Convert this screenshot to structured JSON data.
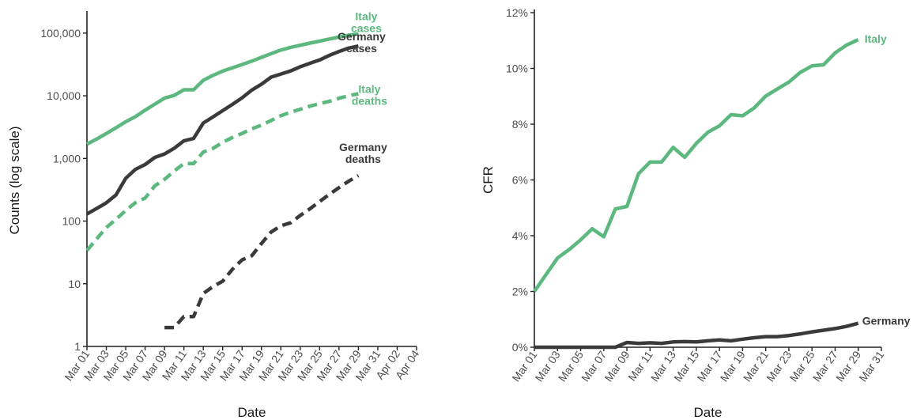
{
  "colors": {
    "italy": "#5cb87e",
    "germany": "#3a3a3a",
    "axis": "#222222",
    "tick_text": "#4d4d4d"
  },
  "chart_data": [
    {
      "type": "line",
      "xlabel": "Date",
      "ylabel": "Counts (log scale)",
      "yscale": "log",
      "ylim": [
        1,
        200000
      ],
      "yticks": [
        1,
        10,
        100,
        1000,
        10000,
        100000
      ],
      "ytick_labels": [
        "1",
        "10",
        "100",
        "1,000",
        "10,000",
        "100,000"
      ],
      "xlim": [
        "2020-03-01",
        "2020-04-04"
      ],
      "xtick_labels": [
        "Mar 01",
        "Mar 03",
        "Mar 05",
        "Mar 07",
        "Mar 09",
        "Mar 11",
        "Mar 13",
        "Mar 15",
        "Mar 17",
        "Mar 19",
        "Mar 21",
        "Mar 23",
        "Mar 25",
        "Mar 27",
        "Mar 29",
        "Mar 31",
        "Apr 02",
        "Apr 04"
      ],
      "grid": false,
      "legend": "none",
      "series": [
        {
          "name": "Italy cases",
          "label": [
            "Italy",
            "cases"
          ],
          "color": "#5cb87e",
          "dash": "solid",
          "x": [
            "2020-03-01",
            "2020-03-02",
            "2020-03-03",
            "2020-03-04",
            "2020-03-05",
            "2020-03-06",
            "2020-03-07",
            "2020-03-08",
            "2020-03-09",
            "2020-03-10",
            "2020-03-11",
            "2020-03-12",
            "2020-03-13",
            "2020-03-14",
            "2020-03-15",
            "2020-03-16",
            "2020-03-17",
            "2020-03-18",
            "2020-03-19",
            "2020-03-20",
            "2020-03-21",
            "2020-03-22",
            "2020-03-23",
            "2020-03-24",
            "2020-03-25",
            "2020-03-26",
            "2020-03-27",
            "2020-03-28",
            "2020-03-29"
          ],
          "y": [
            1694,
            2036,
            2502,
            3089,
            3858,
            4636,
            5883,
            7375,
            9172,
            10149,
            12462,
            12462,
            17660,
            21157,
            24747,
            27980,
            31506,
            35713,
            41035,
            47021,
            53578,
            59138,
            63927,
            69176,
            74386,
            80589,
            86498,
            92472,
            97689
          ]
        },
        {
          "name": "Germany cases",
          "label": [
            "Germany",
            "cases"
          ],
          "color": "#3a3a3a",
          "dash": "solid",
          "x": [
            "2020-03-01",
            "2020-03-02",
            "2020-03-03",
            "2020-03-04",
            "2020-03-05",
            "2020-03-06",
            "2020-03-07",
            "2020-03-08",
            "2020-03-09",
            "2020-03-10",
            "2020-03-11",
            "2020-03-12",
            "2020-03-13",
            "2020-03-14",
            "2020-03-15",
            "2020-03-16",
            "2020-03-17",
            "2020-03-18",
            "2020-03-19",
            "2020-03-20",
            "2020-03-21",
            "2020-03-22",
            "2020-03-23",
            "2020-03-24",
            "2020-03-25",
            "2020-03-26",
            "2020-03-27",
            "2020-03-28",
            "2020-03-29"
          ],
          "y": [
            130,
            159,
            196,
            262,
            482,
            670,
            799,
            1040,
            1176,
            1457,
            1908,
            2078,
            3675,
            4585,
            5795,
            7272,
            9257,
            12327,
            15320,
            19848,
            22213,
            24873,
            29056,
            32986,
            37323,
            43938,
            50871,
            57695,
            62095
          ]
        },
        {
          "name": "Italy deaths",
          "label": [
            "Italy",
            "deaths"
          ],
          "color": "#5cb87e",
          "dash": "dashed",
          "x": [
            "2020-03-01",
            "2020-03-02",
            "2020-03-03",
            "2020-03-04",
            "2020-03-05",
            "2020-03-06",
            "2020-03-07",
            "2020-03-08",
            "2020-03-09",
            "2020-03-10",
            "2020-03-11",
            "2020-03-12",
            "2020-03-13",
            "2020-03-14",
            "2020-03-15",
            "2020-03-16",
            "2020-03-17",
            "2020-03-18",
            "2020-03-19",
            "2020-03-20",
            "2020-03-21",
            "2020-03-22",
            "2020-03-23",
            "2020-03-24",
            "2020-03-25",
            "2020-03-26",
            "2020-03-27",
            "2020-03-28",
            "2020-03-29"
          ],
          "y": [
            34,
            52,
            79,
            107,
            148,
            197,
            233,
            366,
            463,
            631,
            827,
            827,
            1266,
            1441,
            1809,
            2158,
            2503,
            2978,
            3405,
            4032,
            4825,
            5476,
            6077,
            6820,
            7503,
            8165,
            9134,
            10023,
            10779
          ]
        },
        {
          "name": "Germany deaths",
          "label": [
            "Germany",
            "deaths"
          ],
          "color": "#3a3a3a",
          "dash": "dashed",
          "x": [
            "2020-03-09",
            "2020-03-10",
            "2020-03-11",
            "2020-03-12",
            "2020-03-13",
            "2020-03-14",
            "2020-03-15",
            "2020-03-16",
            "2020-03-17",
            "2020-03-18",
            "2020-03-19",
            "2020-03-20",
            "2020-03-21",
            "2020-03-22",
            "2020-03-23",
            "2020-03-24",
            "2020-03-25",
            "2020-03-26",
            "2020-03-27",
            "2020-03-28",
            "2020-03-29"
          ],
          "y": [
            2,
            2,
            3,
            3,
            7,
            9,
            11,
            17,
            24,
            28,
            44,
            67,
            84,
            94,
            123,
            157,
            206,
            267,
            342,
            433,
            533
          ]
        }
      ]
    },
    {
      "type": "line",
      "xlabel": "Date",
      "ylabel": "CFR",
      "ylim": [
        0,
        12
      ],
      "yticks": [
        0,
        2,
        4,
        6,
        8,
        10,
        12
      ],
      "ytick_labels": [
        "0%",
        "2%",
        "4%",
        "6%",
        "8%",
        "10%",
        "12%"
      ],
      "xlim": [
        "2020-03-01",
        "2020-03-31"
      ],
      "xtick_labels": [
        "Mar 01",
        "Mar 03",
        "Mar 05",
        "Mar 07",
        "Mar 09",
        "Mar 11",
        "Mar 13",
        "Mar 15",
        "Mar 17",
        "Mar 19",
        "Mar 21",
        "Mar 23",
        "Mar 25",
        "Mar 27",
        "Mar 29",
        "Mar 31"
      ],
      "grid": false,
      "legend": "none",
      "series": [
        {
          "name": "Italy",
          "label": [
            "Italy"
          ],
          "color": "#5cb87e",
          "dash": "solid",
          "x": [
            "2020-03-01",
            "2020-03-02",
            "2020-03-03",
            "2020-03-04",
            "2020-03-05",
            "2020-03-06",
            "2020-03-07",
            "2020-03-08",
            "2020-03-09",
            "2020-03-10",
            "2020-03-11",
            "2020-03-12",
            "2020-03-13",
            "2020-03-14",
            "2020-03-15",
            "2020-03-16",
            "2020-03-17",
            "2020-03-18",
            "2020-03-19",
            "2020-03-20",
            "2020-03-21",
            "2020-03-22",
            "2020-03-23",
            "2020-03-24",
            "2020-03-25",
            "2020-03-26",
            "2020-03-27",
            "2020-03-28",
            "2020-03-29"
          ],
          "y": [
            2.0,
            2.6,
            3.2,
            3.5,
            3.85,
            4.25,
            3.96,
            4.96,
            5.05,
            6.22,
            6.64,
            6.64,
            7.17,
            6.81,
            7.31,
            7.71,
            7.94,
            8.34,
            8.3,
            8.58,
            9.01,
            9.26,
            9.51,
            9.86,
            10.09,
            10.13,
            10.56,
            10.84,
            11.03
          ]
        },
        {
          "name": "Germany",
          "label": [
            "Germany"
          ],
          "color": "#3a3a3a",
          "dash": "solid",
          "x": [
            "2020-03-01",
            "2020-03-02",
            "2020-03-03",
            "2020-03-04",
            "2020-03-05",
            "2020-03-06",
            "2020-03-07",
            "2020-03-08",
            "2020-03-09",
            "2020-03-10",
            "2020-03-11",
            "2020-03-12",
            "2020-03-13",
            "2020-03-14",
            "2020-03-15",
            "2020-03-16",
            "2020-03-17",
            "2020-03-18",
            "2020-03-19",
            "2020-03-20",
            "2020-03-21",
            "2020-03-22",
            "2020-03-23",
            "2020-03-24",
            "2020-03-25",
            "2020-03-26",
            "2020-03-27",
            "2020-03-28",
            "2020-03-29"
          ],
          "y": [
            0,
            0,
            0,
            0,
            0,
            0,
            0,
            0,
            0.17,
            0.14,
            0.16,
            0.14,
            0.19,
            0.2,
            0.19,
            0.23,
            0.26,
            0.23,
            0.29,
            0.34,
            0.38,
            0.38,
            0.42,
            0.48,
            0.55,
            0.61,
            0.67,
            0.75,
            0.86
          ]
        }
      ]
    }
  ]
}
